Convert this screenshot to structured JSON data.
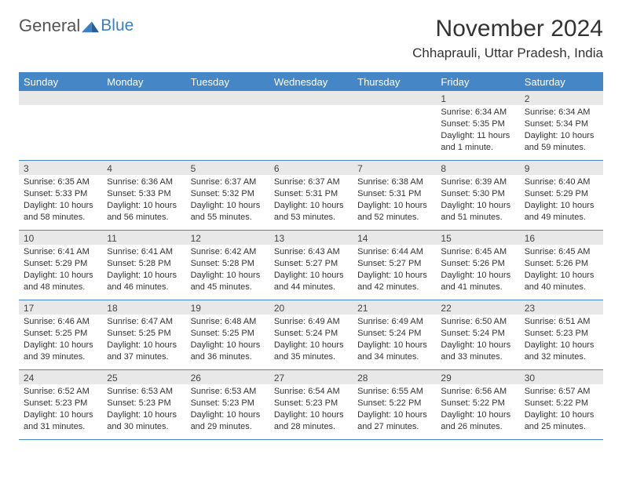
{
  "logo": {
    "text1": "General",
    "text2": "Blue"
  },
  "title": "November 2024",
  "location": "Chhaprauli, Uttar Pradesh, India",
  "day_headers": [
    "Sunday",
    "Monday",
    "Tuesday",
    "Wednesday",
    "Thursday",
    "Friday",
    "Saturday"
  ],
  "colors": {
    "header_bg": "#4486c6",
    "header_text": "#ffffff",
    "daynum_bg": "#e8e8e8",
    "border": "#4486c6",
    "logo_blue": "#3b7fc4",
    "logo_gray": "#555555"
  },
  "weeks": [
    [
      {
        "day": "",
        "sunrise": "",
        "sunset": "",
        "daylight": ""
      },
      {
        "day": "",
        "sunrise": "",
        "sunset": "",
        "daylight": ""
      },
      {
        "day": "",
        "sunrise": "",
        "sunset": "",
        "daylight": ""
      },
      {
        "day": "",
        "sunrise": "",
        "sunset": "",
        "daylight": ""
      },
      {
        "day": "",
        "sunrise": "",
        "sunset": "",
        "daylight": ""
      },
      {
        "day": "1",
        "sunrise": "Sunrise: 6:34 AM",
        "sunset": "Sunset: 5:35 PM",
        "daylight": "Daylight: 11 hours and 1 minute."
      },
      {
        "day": "2",
        "sunrise": "Sunrise: 6:34 AM",
        "sunset": "Sunset: 5:34 PM",
        "daylight": "Daylight: 10 hours and 59 minutes."
      }
    ],
    [
      {
        "day": "3",
        "sunrise": "Sunrise: 6:35 AM",
        "sunset": "Sunset: 5:33 PM",
        "daylight": "Daylight: 10 hours and 58 minutes."
      },
      {
        "day": "4",
        "sunrise": "Sunrise: 6:36 AM",
        "sunset": "Sunset: 5:33 PM",
        "daylight": "Daylight: 10 hours and 56 minutes."
      },
      {
        "day": "5",
        "sunrise": "Sunrise: 6:37 AM",
        "sunset": "Sunset: 5:32 PM",
        "daylight": "Daylight: 10 hours and 55 minutes."
      },
      {
        "day": "6",
        "sunrise": "Sunrise: 6:37 AM",
        "sunset": "Sunset: 5:31 PM",
        "daylight": "Daylight: 10 hours and 53 minutes."
      },
      {
        "day": "7",
        "sunrise": "Sunrise: 6:38 AM",
        "sunset": "Sunset: 5:31 PM",
        "daylight": "Daylight: 10 hours and 52 minutes."
      },
      {
        "day": "8",
        "sunrise": "Sunrise: 6:39 AM",
        "sunset": "Sunset: 5:30 PM",
        "daylight": "Daylight: 10 hours and 51 minutes."
      },
      {
        "day": "9",
        "sunrise": "Sunrise: 6:40 AM",
        "sunset": "Sunset: 5:29 PM",
        "daylight": "Daylight: 10 hours and 49 minutes."
      }
    ],
    [
      {
        "day": "10",
        "sunrise": "Sunrise: 6:41 AM",
        "sunset": "Sunset: 5:29 PM",
        "daylight": "Daylight: 10 hours and 48 minutes."
      },
      {
        "day": "11",
        "sunrise": "Sunrise: 6:41 AM",
        "sunset": "Sunset: 5:28 PM",
        "daylight": "Daylight: 10 hours and 46 minutes."
      },
      {
        "day": "12",
        "sunrise": "Sunrise: 6:42 AM",
        "sunset": "Sunset: 5:28 PM",
        "daylight": "Daylight: 10 hours and 45 minutes."
      },
      {
        "day": "13",
        "sunrise": "Sunrise: 6:43 AM",
        "sunset": "Sunset: 5:27 PM",
        "daylight": "Daylight: 10 hours and 44 minutes."
      },
      {
        "day": "14",
        "sunrise": "Sunrise: 6:44 AM",
        "sunset": "Sunset: 5:27 PM",
        "daylight": "Daylight: 10 hours and 42 minutes."
      },
      {
        "day": "15",
        "sunrise": "Sunrise: 6:45 AM",
        "sunset": "Sunset: 5:26 PM",
        "daylight": "Daylight: 10 hours and 41 minutes."
      },
      {
        "day": "16",
        "sunrise": "Sunrise: 6:45 AM",
        "sunset": "Sunset: 5:26 PM",
        "daylight": "Daylight: 10 hours and 40 minutes."
      }
    ],
    [
      {
        "day": "17",
        "sunrise": "Sunrise: 6:46 AM",
        "sunset": "Sunset: 5:25 PM",
        "daylight": "Daylight: 10 hours and 39 minutes."
      },
      {
        "day": "18",
        "sunrise": "Sunrise: 6:47 AM",
        "sunset": "Sunset: 5:25 PM",
        "daylight": "Daylight: 10 hours and 37 minutes."
      },
      {
        "day": "19",
        "sunrise": "Sunrise: 6:48 AM",
        "sunset": "Sunset: 5:25 PM",
        "daylight": "Daylight: 10 hours and 36 minutes."
      },
      {
        "day": "20",
        "sunrise": "Sunrise: 6:49 AM",
        "sunset": "Sunset: 5:24 PM",
        "daylight": "Daylight: 10 hours and 35 minutes."
      },
      {
        "day": "21",
        "sunrise": "Sunrise: 6:49 AM",
        "sunset": "Sunset: 5:24 PM",
        "daylight": "Daylight: 10 hours and 34 minutes."
      },
      {
        "day": "22",
        "sunrise": "Sunrise: 6:50 AM",
        "sunset": "Sunset: 5:24 PM",
        "daylight": "Daylight: 10 hours and 33 minutes."
      },
      {
        "day": "23",
        "sunrise": "Sunrise: 6:51 AM",
        "sunset": "Sunset: 5:23 PM",
        "daylight": "Daylight: 10 hours and 32 minutes."
      }
    ],
    [
      {
        "day": "24",
        "sunrise": "Sunrise: 6:52 AM",
        "sunset": "Sunset: 5:23 PM",
        "daylight": "Daylight: 10 hours and 31 minutes."
      },
      {
        "day": "25",
        "sunrise": "Sunrise: 6:53 AM",
        "sunset": "Sunset: 5:23 PM",
        "daylight": "Daylight: 10 hours and 30 minutes."
      },
      {
        "day": "26",
        "sunrise": "Sunrise: 6:53 AM",
        "sunset": "Sunset: 5:23 PM",
        "daylight": "Daylight: 10 hours and 29 minutes."
      },
      {
        "day": "27",
        "sunrise": "Sunrise: 6:54 AM",
        "sunset": "Sunset: 5:23 PM",
        "daylight": "Daylight: 10 hours and 28 minutes."
      },
      {
        "day": "28",
        "sunrise": "Sunrise: 6:55 AM",
        "sunset": "Sunset: 5:22 PM",
        "daylight": "Daylight: 10 hours and 27 minutes."
      },
      {
        "day": "29",
        "sunrise": "Sunrise: 6:56 AM",
        "sunset": "Sunset: 5:22 PM",
        "daylight": "Daylight: 10 hours and 26 minutes."
      },
      {
        "day": "30",
        "sunrise": "Sunrise: 6:57 AM",
        "sunset": "Sunset: 5:22 PM",
        "daylight": "Daylight: 10 hours and 25 minutes."
      }
    ]
  ]
}
